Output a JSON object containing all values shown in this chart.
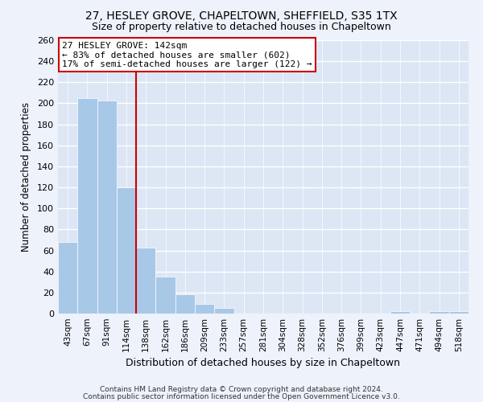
{
  "title1": "27, HESLEY GROVE, CHAPELTOWN, SHEFFIELD, S35 1TX",
  "title2": "Size of property relative to detached houses in Chapeltown",
  "xlabel": "Distribution of detached houses by size in Chapeltown",
  "ylabel": "Number of detached properties",
  "bar_labels": [
    "43sqm",
    "67sqm",
    "91sqm",
    "114sqm",
    "138sqm",
    "162sqm",
    "186sqm",
    "209sqm",
    "233sqm",
    "257sqm",
    "281sqm",
    "304sqm",
    "328sqm",
    "352sqm",
    "376sqm",
    "399sqm",
    "423sqm",
    "447sqm",
    "471sqm",
    "494sqm",
    "518sqm"
  ],
  "bar_values": [
    68,
    205,
    203,
    120,
    63,
    35,
    18,
    9,
    5,
    0,
    0,
    0,
    0,
    0,
    0,
    0,
    0,
    2,
    0,
    2,
    2
  ],
  "bar_color": "#a8c8e8",
  "highlight_color": "#cc0000",
  "red_line_after_index": 3,
  "annotation_title": "27 HESLEY GROVE: 142sqm",
  "annotation_line1": "← 83% of detached houses are smaller (602)",
  "annotation_line2": "17% of semi-detached houses are larger (122) →",
  "annotation_box_color": "#ffffff",
  "annotation_box_edge": "#cc0000",
  "ylim": [
    0,
    260
  ],
  "yticks": [
    0,
    20,
    40,
    60,
    80,
    100,
    120,
    140,
    160,
    180,
    200,
    220,
    240,
    260
  ],
  "footer1": "Contains HM Land Registry data © Crown copyright and database right 2024.",
  "footer2": "Contains public sector information licensed under the Open Government Licence v3.0.",
  "bg_color": "#edf2fb",
  "plot_bg_color": "#dce6f5"
}
